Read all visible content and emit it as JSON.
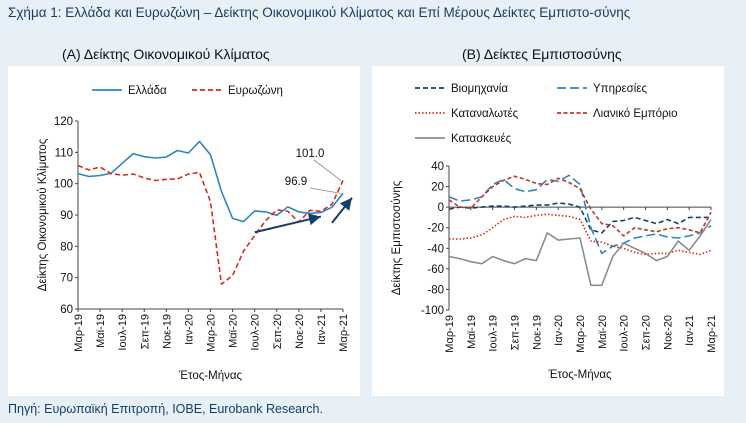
{
  "figure_title": "Σχήμα 1: Ελλάδα και Ευρωζώνη – Δείκτης Οικονομικού Κλίματος και Επί Μέρους Δείκτες Εμπιστο-σύνης",
  "source": "Πηγή: Ευρωπαϊκή Επιτροπή, ΙΟΒΕ, Eurobank Research.",
  "chart_data": [
    {
      "type": "line",
      "panel_title": "(Α) Δείκτης Οικονομικού Κλίματος",
      "ylabel": "Δείκτης Οικονομικού Κλίματος",
      "xlabel": "Έτος-Μήνας",
      "ylim": [
        60,
        120
      ],
      "yticks": [
        60,
        70,
        80,
        90,
        100,
        110,
        120
      ],
      "legend_position": "top",
      "x_tick_labels": [
        "Μαρ-19",
        "Μαϊ-19",
        "Ιουλ-19",
        "Σεπ-19",
        "Νοε-19",
        "Ιαν-20",
        "Μαρ-20",
        "Μαϊ-20",
        "Ιουλ-20",
        "Σεπ-20",
        "Νοε-20",
        "Ιαν-21",
        "Μαρ-21"
      ],
      "x": [
        "Μαρ-19",
        "Απρ-19",
        "Μαϊ-19",
        "Ιουν-19",
        "Ιουλ-19",
        "Αυγ-19",
        "Σεπ-19",
        "Οκτ-19",
        "Νοε-19",
        "Δεκ-19",
        "Ιαν-20",
        "Φεβ-20",
        "Μαρ-20",
        "Απρ-20",
        "Μαϊ-20",
        "Ιουν-20",
        "Ιουλ-20",
        "Αυγ-20",
        "Σεπ-20",
        "Οκτ-20",
        "Νοε-20",
        "Δεκ-20",
        "Ιαν-21",
        "Φεβ-21",
        "Μαρ-21"
      ],
      "series": [
        {
          "name": "Ελλάδα",
          "color": "#2e86c1",
          "dash": "solid",
          "values": [
            103.2,
            102.3,
            102.6,
            103.3,
            106.5,
            109.6,
            108.6,
            108.2,
            108.5,
            110.6,
            109.8,
            113.5,
            109.2,
            97.5,
            88.9,
            87.9,
            91.3,
            91.0,
            89.9,
            92.6,
            91.0,
            90.5,
            90.8,
            92.5,
            96.9
          ]
        },
        {
          "name": "Ευρωζώνη",
          "color": "#d62b1f",
          "dash": "dashed",
          "values": [
            105.8,
            104.4,
            105.3,
            103.2,
            102.7,
            103.1,
            101.8,
            101.0,
            101.4,
            101.5,
            103.1,
            103.6,
            94.2,
            67.9,
            70.7,
            78.5,
            83.5,
            88.2,
            91.6,
            91.2,
            87.7,
            91.5,
            91.2,
            93.4,
            101.0
          ]
        }
      ],
      "annotations": [
        {
          "text": "101.0",
          "series": "Ευρωζώνη",
          "x": "Μαρ-21",
          "value": 101.0
        },
        {
          "text": "96.9",
          "series": "Ελλάδα",
          "x": "Μαρ-21",
          "value": 96.9
        }
      ],
      "arrows": [
        {
          "from": {
            "x": "Ιουλ-20",
            "value": 84.5
          },
          "to": {
            "x": "Ιαν-21",
            "value": 89.5
          }
        },
        {
          "from": {
            "x": "Φεβ-21",
            "value": 87.5
          },
          "to": {
            "x": "Μαρ-21",
            "value": 95.5
          }
        }
      ]
    },
    {
      "type": "line",
      "panel_title": "(Β) Δείκτες Εμπιστοσύνης",
      "ylabel": "Δείκτης Εμπιστοσύνης",
      "xlabel": "Έτος-Μήνας",
      "ylim": [
        -100,
        40
      ],
      "yticks": [
        -100,
        -80,
        -60,
        -40,
        -20,
        0,
        20,
        40
      ],
      "legend_position": "top",
      "x_tick_labels": [
        "Μαρ-19",
        "Μαϊ-19",
        "Ιουλ-19",
        "Σεπ-19",
        "Νοε-19",
        "Ιαν-20",
        "Μαρ-20",
        "Μαϊ-20",
        "Ιουλ-20",
        "Σεπ-20",
        "Νοε-20",
        "Ιαν-21",
        "Μαρ-21"
      ],
      "x": [
        "Μαρ-19",
        "Απρ-19",
        "Μαϊ-19",
        "Ιουν-19",
        "Ιουλ-19",
        "Αυγ-19",
        "Σεπ-19",
        "Οκτ-19",
        "Νοε-19",
        "Δεκ-19",
        "Ιαν-20",
        "Φεβ-20",
        "Μαρ-20",
        "Απρ-20",
        "Μαϊ-20",
        "Ιουν-20",
        "Ιουλ-20",
        "Αυγ-20",
        "Σεπ-20",
        "Οκτ-20",
        "Νοε-20",
        "Δεκ-20",
        "Ιαν-21",
        "Φεβ-21",
        "Μαρ-21"
      ],
      "series": [
        {
          "name": "Βιομηχανία",
          "color": "#1a3d66",
          "dash": "dashed",
          "values": [
            -2,
            0,
            -1,
            0,
            1,
            1,
            0,
            1,
            2,
            2,
            4,
            3,
            0,
            -22,
            -25,
            -14,
            -13,
            -10,
            -13,
            -16,
            -12,
            -16,
            -10,
            -10,
            -10
          ]
        },
        {
          "name": "Υπηρεσίες",
          "color": "#2e86c1",
          "dash": "longdash",
          "values": [
            10,
            6,
            7,
            10,
            22,
            27,
            18,
            15,
            17,
            27,
            25,
            31,
            22,
            -20,
            -45,
            -38,
            -35,
            -30,
            -28,
            -26,
            -29,
            -30,
            -28,
            -25,
            -18
          ]
        },
        {
          "name": "Καταναλωτές",
          "color": "#d62b1f",
          "dash": "dotted",
          "values": [
            -31,
            -31,
            -30,
            -27,
            -20,
            -12,
            -9,
            -10,
            -8,
            -7,
            -8,
            -9,
            -12,
            -33,
            -34,
            -38,
            -40,
            -44,
            -46,
            -45,
            -45,
            -42,
            -44,
            -46,
            -42
          ]
        },
        {
          "name": "Λιανικό Εμπόριο",
          "color": "#c0392b",
          "dash": "shortdash",
          "values": [
            7,
            0,
            -1,
            10,
            20,
            26,
            30,
            27,
            23,
            22,
            28,
            24,
            18,
            -2,
            -16,
            -18,
            -28,
            -20,
            -22,
            -24,
            -21,
            -20,
            -22,
            -25,
            -5
          ]
        },
        {
          "name": "Κατασκευές",
          "color": "#8c8c8c",
          "dash": "solid",
          "values": [
            -48,
            -50,
            -53,
            -55,
            -48,
            -52,
            -55,
            -50,
            -52,
            -25,
            -32,
            -31,
            -30,
            -76,
            -76,
            -48,
            -35,
            -40,
            -45,
            -52,
            -48,
            -33,
            -42,
            -28,
            -12
          ]
        }
      ]
    }
  ]
}
